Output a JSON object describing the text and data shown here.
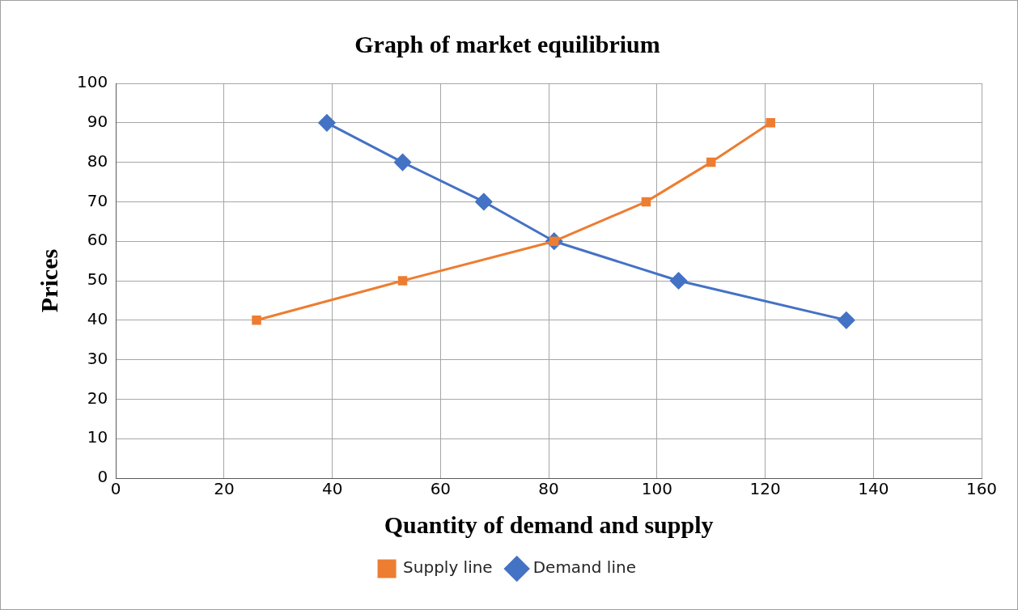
{
  "chart_data": {
    "type": "line",
    "title": "Graph of market equilibrium",
    "xlabel": "Quantity of demand and supply",
    "ylabel": "Prices",
    "series": [
      {
        "name": "Supply line",
        "color": "#ed7d31",
        "marker": "square",
        "x": [
          26,
          53,
          81,
          98,
          110,
          121
        ],
        "values": [
          40,
          50,
          60,
          70,
          80,
          90
        ]
      },
      {
        "name": "Demand line",
        "color": "#4472c4",
        "marker": "diamond",
        "x": [
          39,
          53,
          68,
          81,
          104,
          135
        ],
        "values": [
          90,
          80,
          70,
          60,
          50,
          40
        ]
      }
    ],
    "xlim": [
      0,
      160
    ],
    "xticks": [
      0,
      20,
      40,
      60,
      80,
      100,
      120,
      140,
      160
    ],
    "ylim": [
      0,
      100
    ],
    "yticks": [
      0,
      10,
      20,
      30,
      40,
      50,
      60,
      70,
      80,
      90,
      100
    ],
    "grid": true,
    "legend": "bottom"
  }
}
